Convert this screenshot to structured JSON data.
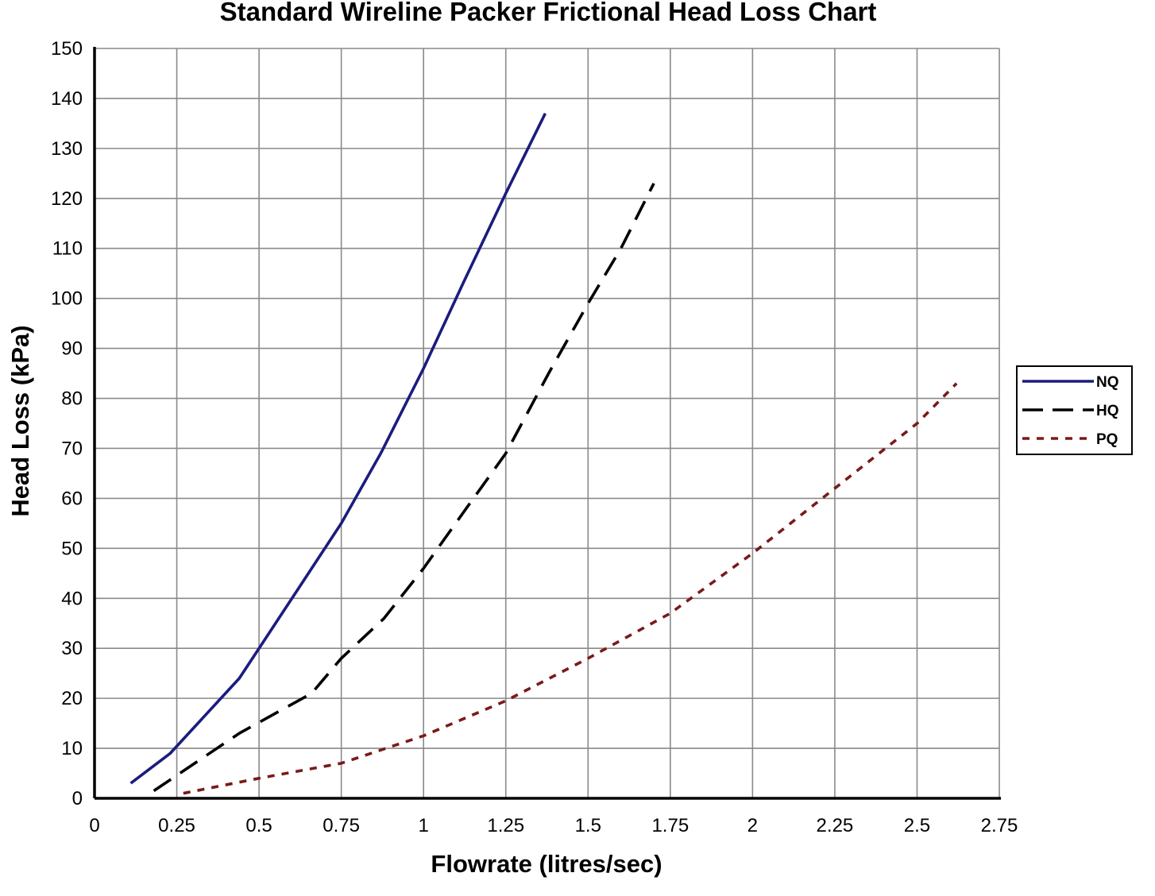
{
  "chart_data": {
    "type": "line",
    "title": "Standard Wireline Packer Frictional Head Loss Chart",
    "xlabel": "Flowrate (litres/sec)",
    "ylabel": "Head Loss (kPa)",
    "xlim": [
      0,
      2.75
    ],
    "ylim": [
      0,
      150
    ],
    "x_ticks": [
      "0",
      "0.25",
      "0.5",
      "0.75",
      "1",
      "1.25",
      "1.5",
      "1.75",
      "2",
      "2.25",
      "2.5",
      "2.75"
    ],
    "y_ticks": [
      "0",
      "10",
      "20",
      "30",
      "40",
      "50",
      "60",
      "70",
      "80",
      "90",
      "100",
      "110",
      "120",
      "130",
      "140",
      "150"
    ],
    "grid": true,
    "legend_position": "right",
    "series": [
      {
        "name": "NQ",
        "color": "#1c1c7e",
        "style": "solid",
        "points": [
          [
            0.11,
            3
          ],
          [
            0.23,
            9
          ],
          [
            0.44,
            24
          ],
          [
            0.5,
            30
          ],
          [
            0.62,
            42
          ],
          [
            0.75,
            55
          ],
          [
            0.87,
            69
          ],
          [
            1.0,
            86
          ],
          [
            1.12,
            103
          ],
          [
            1.25,
            121
          ],
          [
            1.37,
            137
          ]
        ]
      },
      {
        "name": "HQ",
        "color": "#000000",
        "style": "dashed",
        "points": [
          [
            0.18,
            1.5
          ],
          [
            0.44,
            13
          ],
          [
            0.66,
            21
          ],
          [
            0.75,
            28
          ],
          [
            0.88,
            36
          ],
          [
            1.0,
            46
          ],
          [
            1.13,
            58
          ],
          [
            1.25,
            69
          ],
          [
            1.38,
            85
          ],
          [
            1.5,
            99
          ],
          [
            1.6,
            110
          ],
          [
            1.7,
            123
          ]
        ]
      },
      {
        "name": "PQ",
        "color": "#7a1a1a",
        "style": "dotted",
        "points": [
          [
            0.27,
            1
          ],
          [
            0.5,
            4
          ],
          [
            0.75,
            7
          ],
          [
            1.0,
            12.5
          ],
          [
            1.25,
            19.5
          ],
          [
            1.5,
            28
          ],
          [
            1.75,
            37
          ],
          [
            2.0,
            49
          ],
          [
            2.25,
            62
          ],
          [
            2.5,
            75
          ],
          [
            2.62,
            83
          ]
        ]
      }
    ]
  }
}
